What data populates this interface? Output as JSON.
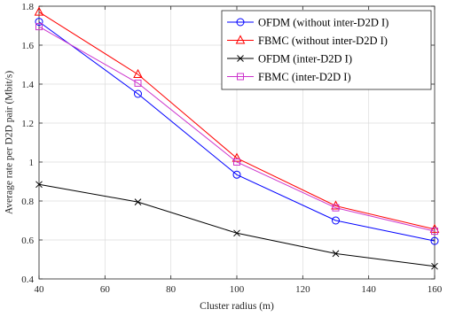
{
  "chart_data": {
    "type": "line",
    "xlabel": "Cluster radius (m)",
    "ylabel": "Average rate per D2D pair (Mbit/s)",
    "xlim": [
      40,
      160
    ],
    "ylim": [
      0.4,
      1.8
    ],
    "xticks": [
      40,
      60,
      80,
      100,
      120,
      140,
      160
    ],
    "yticks": [
      0.4,
      0.6,
      0.8,
      1.0,
      1.2,
      1.4,
      1.6,
      1.8
    ],
    "xtick_labels": [
      "40",
      "60",
      "80",
      "100",
      "120",
      "140",
      "160"
    ],
    "ytick_labels": [
      "0.4",
      "0.6",
      "0.8",
      "1",
      "1.2",
      "1.4",
      "1.6",
      "1.8"
    ],
    "grid": true,
    "legend_position": "top-right",
    "x": [
      40,
      70,
      100,
      130,
      160
    ],
    "series": [
      {
        "name": "OFDM (without inter-D2D I)",
        "values": [
          1.72,
          1.35,
          0.935,
          0.7,
          0.595
        ],
        "color": "#0000ff",
        "marker": "circle"
      },
      {
        "name": "FBMC (without inter-D2D I)",
        "values": [
          1.77,
          1.45,
          1.02,
          0.775,
          0.655
        ],
        "color": "#ff0000",
        "marker": "triangle"
      },
      {
        "name": "OFDM (inter-D2D I)",
        "values": [
          0.885,
          0.795,
          0.635,
          0.53,
          0.465
        ],
        "color": "#000000",
        "marker": "x"
      },
      {
        "name": "FBMC (inter-D2D I)",
        "values": [
          1.695,
          1.405,
          1.0,
          0.765,
          0.645
        ],
        "color": "#cc33cc",
        "marker": "square"
      }
    ]
  }
}
